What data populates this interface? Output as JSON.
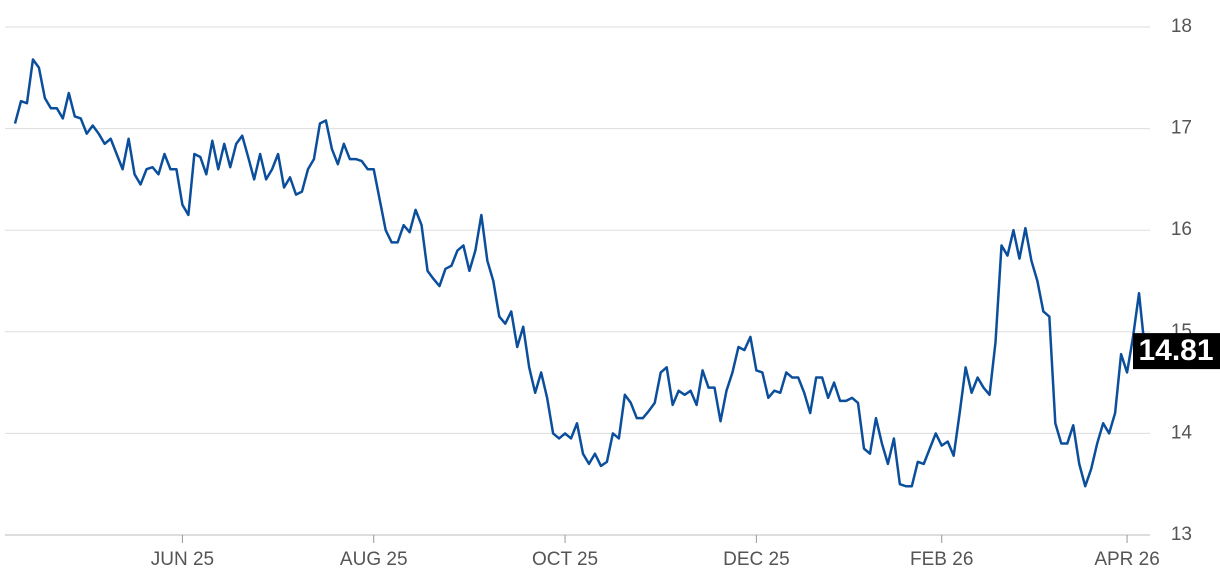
{
  "chart_data": {
    "type": "line",
    "categories": [
      null,
      null,
      null,
      null,
      null,
      null,
      null,
      null,
      null,
      null,
      null,
      null,
      null,
      null,
      null,
      null,
      null,
      null,
      null,
      null,
      null,
      null,
      null,
      null,
      null,
      null,
      null,
      null,
      "JUN 25",
      null,
      null,
      null,
      null,
      null,
      null,
      null,
      null,
      null,
      null,
      null,
      null,
      null,
      null,
      null,
      null,
      null,
      null,
      null,
      null,
      null,
      null,
      null,
      null,
      null,
      null,
      null,
      null,
      null,
      null,
      null,
      "AUG 25",
      null,
      null,
      null,
      null,
      null,
      null,
      null,
      null,
      null,
      null,
      null,
      null,
      null,
      null,
      null,
      null,
      null,
      null,
      null,
      null,
      null,
      null,
      null,
      null,
      null,
      null,
      null,
      null,
      null,
      null,
      null,
      "OCT 25",
      null,
      null,
      null,
      null,
      null,
      null,
      null,
      null,
      null,
      null,
      null,
      null,
      null,
      null,
      null,
      null,
      null,
      null,
      null,
      null,
      null,
      null,
      null,
      null,
      null,
      null,
      null,
      null,
      null,
      null,
      null,
      "DEC 25",
      null,
      null,
      null,
      null,
      null,
      null,
      null,
      null,
      null,
      null,
      null,
      null,
      null,
      null,
      null,
      null,
      null,
      null,
      null,
      null,
      null,
      null,
      null,
      null,
      null,
      null,
      null,
      null,
      null,
      null,
      "FEB 26",
      null,
      null,
      null,
      null,
      null,
      null,
      null,
      null,
      null,
      null,
      null,
      null,
      null,
      null,
      null,
      null,
      null,
      null,
      null,
      null,
      null,
      null,
      null,
      null,
      null,
      null,
      null,
      null,
      null,
      null,
      "APR 26",
      null,
      null,
      null
    ],
    "values": [
      17.05,
      17.27,
      17.25,
      17.68,
      17.6,
      17.3,
      17.2,
      17.2,
      17.1,
      17.35,
      17.12,
      17.1,
      16.95,
      17.03,
      16.95,
      16.85,
      16.9,
      16.75,
      16.6,
      16.9,
      16.55,
      16.45,
      16.6,
      16.62,
      16.55,
      16.75,
      16.6,
      16.6,
      16.25,
      16.15,
      16.75,
      16.72,
      16.55,
      16.88,
      16.6,
      16.85,
      16.62,
      16.85,
      16.93,
      16.72,
      16.5,
      16.75,
      16.5,
      16.6,
      16.75,
      16.42,
      16.52,
      16.35,
      16.38,
      16.6,
      16.7,
      17.05,
      17.08,
      16.8,
      16.65,
      16.85,
      16.7,
      16.7,
      16.68,
      16.6,
      16.6,
      16.3,
      16.0,
      15.88,
      15.88,
      16.05,
      15.98,
      16.2,
      16.05,
      15.6,
      15.52,
      15.45,
      15.62,
      15.65,
      15.8,
      15.85,
      15.6,
      15.8,
      16.15,
      15.7,
      15.5,
      15.15,
      15.08,
      15.2,
      14.85,
      15.05,
      14.65,
      14.4,
      14.6,
      14.35,
      14.0,
      13.95,
      14.0,
      13.95,
      14.1,
      13.8,
      13.7,
      13.8,
      13.68,
      13.72,
      14.0,
      13.95,
      14.38,
      14.3,
      14.15,
      14.15,
      14.22,
      14.3,
      14.6,
      14.65,
      14.28,
      14.42,
      14.38,
      14.42,
      14.28,
      14.62,
      14.45,
      14.45,
      14.12,
      14.42,
      14.6,
      14.85,
      14.82,
      14.95,
      14.62,
      14.6,
      14.35,
      14.42,
      14.4,
      14.6,
      14.55,
      14.55,
      14.4,
      14.2,
      14.55,
      14.55,
      14.35,
      14.5,
      14.32,
      14.32,
      14.35,
      14.3,
      13.85,
      13.8,
      14.15,
      13.9,
      13.7,
      13.95,
      13.5,
      13.48,
      13.48,
      13.72,
      13.7,
      13.85,
      14.0,
      13.88,
      13.92,
      13.78,
      14.2,
      14.65,
      14.4,
      14.55,
      14.45,
      14.38,
      14.9,
      15.85,
      15.75,
      16.0,
      15.72,
      16.02,
      15.7,
      15.5,
      15.2,
      15.15,
      14.1,
      13.9,
      13.9,
      14.08,
      13.7,
      13.48,
      13.65,
      13.9,
      14.1,
      14.0,
      14.2,
      14.78,
      14.6,
      14.95,
      15.38,
      14.81
    ],
    "color": "#0b4f9c",
    "ylim": [
      13,
      18
    ],
    "yticks": [
      13,
      14,
      15,
      16,
      17,
      18
    ],
    "grid": true
  }
}
